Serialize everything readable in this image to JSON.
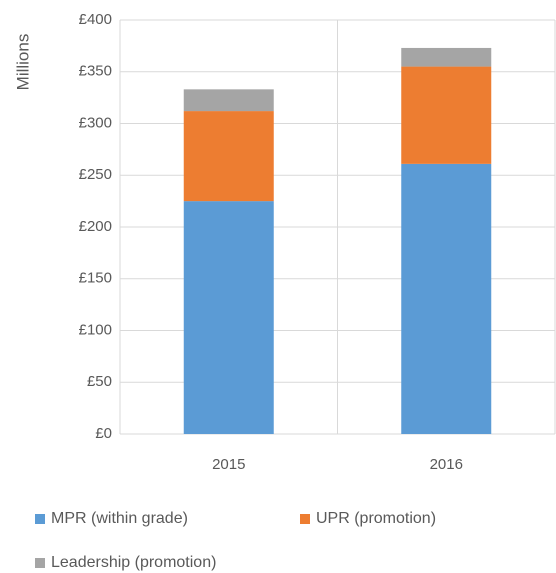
{
  "chart_data": {
    "type": "stacked_bar",
    "y_axis_label": "Millions",
    "categories": [
      "2015",
      "2016"
    ],
    "series": [
      {
        "name": "MPR (within grade)",
        "color": "#5b9bd5",
        "values": [
          225,
          261
        ]
      },
      {
        "name": "UPR (promotion)",
        "color": "#ed7d31",
        "values": [
          87,
          94
        ]
      },
      {
        "name": "Leadership (promotion)",
        "color": "#a5a5a5",
        "values": [
          21,
          18
        ]
      }
    ],
    "ylim": [
      0,
      400
    ],
    "yticks": [
      {
        "value": 0,
        "label": "£0"
      },
      {
        "value": 50,
        "label": "£50"
      },
      {
        "value": 100,
        "label": "£100"
      },
      {
        "value": 150,
        "label": "£150"
      },
      {
        "value": 200,
        "label": "£200"
      },
      {
        "value": 250,
        "label": "£250"
      },
      {
        "value": 300,
        "label": "£300"
      },
      {
        "value": 350,
        "label": "£350"
      },
      {
        "value": 400,
        "label": "£400"
      }
    ],
    "grid": true,
    "legend": "bottom"
  }
}
